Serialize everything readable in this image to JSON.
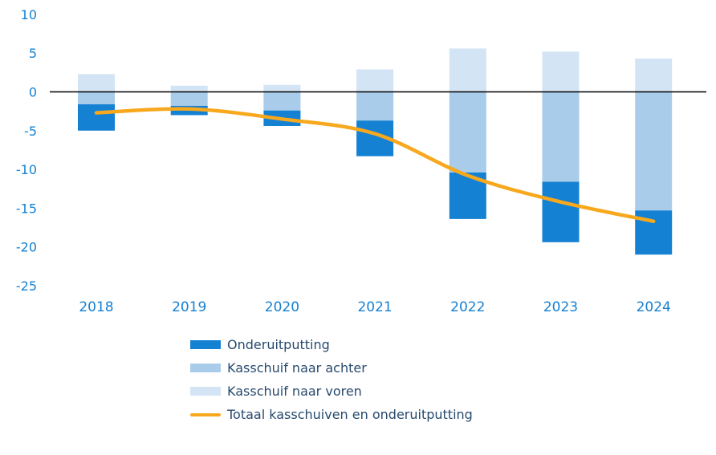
{
  "chart_data": {
    "type": "bar",
    "subtype": "stacked-bars-with-total-line",
    "categories": [
      "2018",
      "2019",
      "2020",
      "2021",
      "2022",
      "2023",
      "2024"
    ],
    "series": [
      {
        "name": "Onderuitputting",
        "type": "bar",
        "color": "#1581d3",
        "values": [
          -3.4,
          -1.2,
          -2.0,
          -4.6,
          -6.0,
          -7.8,
          -5.7
        ]
      },
      {
        "name": "Kasschuif naar achter",
        "type": "bar",
        "color": "#a8cce9",
        "values": [
          -1.6,
          -1.8,
          -2.4,
          -3.7,
          -10.4,
          -11.6,
          -15.3
        ]
      },
      {
        "name": "Kasschuif naar voren",
        "type": "bar",
        "color": "#d3e4f4",
        "values": [
          2.3,
          0.8,
          0.9,
          2.9,
          5.6,
          5.2,
          4.3
        ]
      },
      {
        "name": "Totaal kasschuiven en onderuitputting",
        "type": "line",
        "color": "#f8a81c",
        "values": [
          -2.7,
          -2.2,
          -3.5,
          -5.4,
          -10.8,
          -14.2,
          -16.7
        ]
      }
    ],
    "title": "",
    "xlabel": "",
    "ylabel": "",
    "ylim": [
      -25,
      10
    ],
    "yticks": [
      10,
      5,
      0,
      -5,
      -10,
      -15,
      -20,
      -25
    ],
    "grid": false,
    "legend_position": "bottom",
    "axis_label_color": "#1581d3",
    "zero_line_color": "#000000"
  }
}
